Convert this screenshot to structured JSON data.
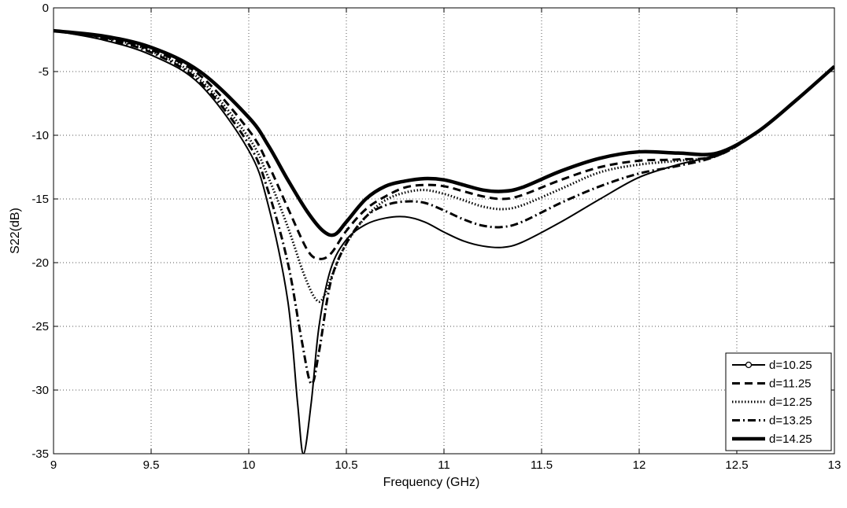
{
  "chart_data": {
    "type": "line",
    "title": "",
    "xlabel": "Frequency (GHz)",
    "ylabel": "S22(dB)",
    "xlim": [
      9,
      13
    ],
    "ylim": [
      -35,
      0
    ],
    "xticks": [
      9,
      9.5,
      10,
      10.5,
      11,
      11.5,
      12,
      12.5,
      13
    ],
    "yticks": [
      0,
      -5,
      -10,
      -15,
      -20,
      -25,
      -30,
      -35
    ],
    "xtick_labels": [
      "9",
      "9.5",
      "10",
      "10.5",
      "11",
      "11.5",
      "12",
      "12.5",
      "13"
    ],
    "ytick_labels": [
      "0",
      "-5",
      "-10",
      "-15",
      "-20",
      "-25",
      "-30",
      "-35"
    ],
    "grid": true,
    "legend_position": "bottom-right",
    "series": [
      {
        "name": "d=10.25",
        "style": "solid-circle",
        "x": [
          9.0,
          9.25,
          9.5,
          9.75,
          10.0,
          10.1,
          10.2,
          10.25,
          10.28,
          10.32,
          10.36,
          10.42,
          10.5,
          10.6,
          10.7,
          10.8,
          10.9,
          11.0,
          11.1,
          11.2,
          11.3,
          11.4,
          11.6,
          11.8,
          12.0,
          12.2,
          12.4,
          12.6,
          12.8,
          13.0
        ],
        "y": [
          -1.8,
          -2.5,
          -3.7,
          -6.0,
          -11.2,
          -15.5,
          -23.0,
          -31.0,
          -35.0,
          -31.0,
          -25.0,
          -20.5,
          -18.2,
          -17.0,
          -16.5,
          -16.4,
          -16.8,
          -17.6,
          -18.3,
          -18.7,
          -18.8,
          -18.4,
          -16.8,
          -15.0,
          -13.3,
          -12.3,
          -11.5,
          -9.8,
          -7.3,
          -4.6
        ]
      },
      {
        "name": "d=11.25",
        "style": "dashed",
        "x": [
          9.0,
          9.25,
          9.5,
          9.75,
          10.0,
          10.1,
          10.2,
          10.3,
          10.36,
          10.42,
          10.5,
          10.6,
          10.7,
          10.8,
          10.9,
          11.0,
          11.1,
          11.2,
          11.3,
          11.4,
          11.6,
          11.8,
          12.0,
          12.2,
          12.4,
          12.6,
          12.8,
          13.0
        ],
        "y": [
          -1.8,
          -2.3,
          -3.3,
          -5.3,
          -9.6,
          -12.3,
          -15.7,
          -19.0,
          -19.7,
          -19.3,
          -17.5,
          -15.8,
          -14.8,
          -14.1,
          -13.9,
          -14.0,
          -14.4,
          -14.8,
          -15.0,
          -14.7,
          -13.5,
          -12.5,
          -12.0,
          -11.9,
          -11.6,
          -9.8,
          -7.3,
          -4.6
        ]
      },
      {
        "name": "d=12.25",
        "style": "dotted",
        "x": [
          9.0,
          9.25,
          9.5,
          9.75,
          10.0,
          10.1,
          10.2,
          10.28,
          10.34,
          10.38,
          10.44,
          10.5,
          10.6,
          10.7,
          10.8,
          10.9,
          11.0,
          11.1,
          11.2,
          11.3,
          11.4,
          11.6,
          11.8,
          12.0,
          12.2,
          12.4,
          12.6,
          12.8,
          13.0
        ],
        "y": [
          -1.8,
          -2.3,
          -3.4,
          -5.6,
          -10.2,
          -13.3,
          -17.2,
          -20.8,
          -22.8,
          -22.8,
          -20.5,
          -18.5,
          -16.4,
          -15.1,
          -14.5,
          -14.3,
          -14.6,
          -15.1,
          -15.6,
          -15.8,
          -15.5,
          -14.2,
          -12.9,
          -12.3,
          -12.0,
          -11.6,
          -9.8,
          -7.3,
          -4.6
        ]
      },
      {
        "name": "d=13.25",
        "style": "dash-dot",
        "x": [
          9.0,
          9.25,
          9.5,
          9.75,
          10.0,
          10.1,
          10.2,
          10.27,
          10.32,
          10.36,
          10.42,
          10.5,
          10.6,
          10.7,
          10.8,
          10.9,
          11.0,
          11.1,
          11.2,
          11.3,
          11.4,
          11.6,
          11.8,
          12.0,
          12.2,
          12.4,
          12.6,
          12.8,
          13.0
        ],
        "y": [
          -1.8,
          -2.4,
          -3.5,
          -5.8,
          -10.7,
          -14.4,
          -20.0,
          -26.0,
          -29.5,
          -27.0,
          -21.5,
          -18.5,
          -16.4,
          -15.5,
          -15.2,
          -15.3,
          -15.9,
          -16.6,
          -17.1,
          -17.2,
          -16.8,
          -15.3,
          -14.0,
          -13.0,
          -12.4,
          -11.6,
          -9.8,
          -7.3,
          -4.6
        ]
      },
      {
        "name": "d=14.25",
        "style": "thick-solid",
        "x": [
          9.0,
          9.25,
          9.5,
          9.75,
          10.0,
          10.1,
          10.2,
          10.3,
          10.38,
          10.44,
          10.5,
          10.6,
          10.7,
          10.8,
          10.9,
          11.0,
          11.1,
          11.2,
          11.3,
          11.4,
          11.6,
          11.8,
          12.0,
          12.2,
          12.4,
          12.6,
          12.8,
          13.0
        ],
        "y": [
          -1.8,
          -2.2,
          -3.1,
          -5.0,
          -8.6,
          -10.8,
          -13.5,
          -16.0,
          -17.5,
          -17.8,
          -16.8,
          -15.0,
          -14.0,
          -13.6,
          -13.4,
          -13.5,
          -13.9,
          -14.3,
          -14.4,
          -14.1,
          -12.8,
          -11.8,
          -11.3,
          -11.4,
          -11.4,
          -9.8,
          -7.3,
          -4.6
        ]
      }
    ]
  }
}
